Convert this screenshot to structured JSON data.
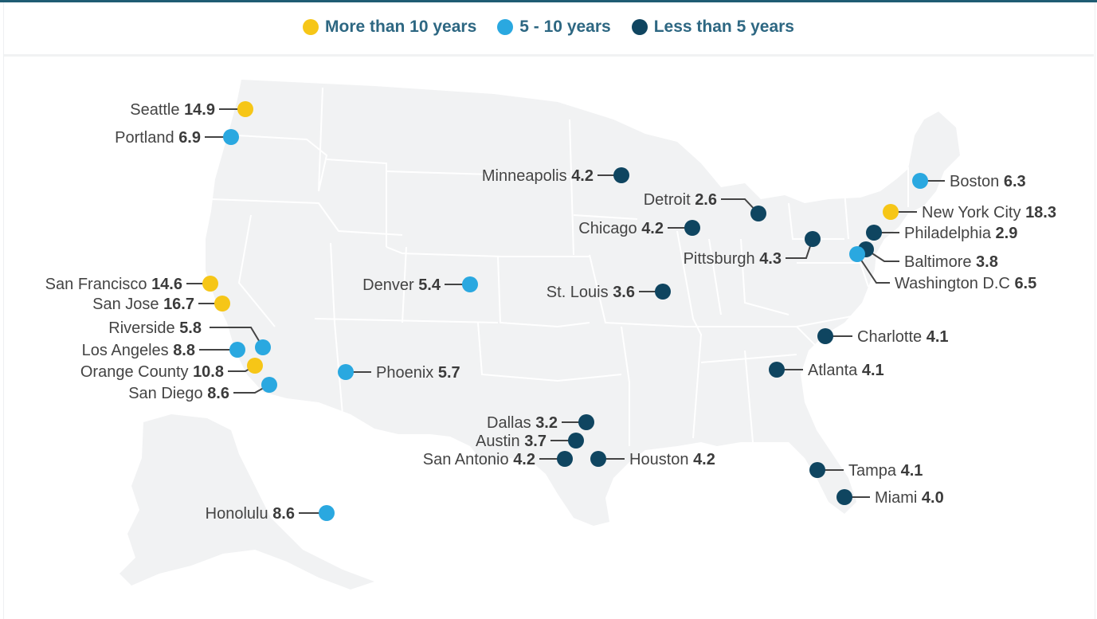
{
  "legend": [
    {
      "label": "More than 10 years",
      "color": "#f6c617"
    },
    {
      "label": "5 - 10 years",
      "color": "#2aa8e0"
    },
    {
      "label": "Less than 5 years",
      "color": "#0f4560"
    }
  ],
  "map_colors": {
    "land": "#f1f2f3",
    "border": "#ffffff",
    "leader": "#444444"
  },
  "cities": [
    {
      "name": "Seattle",
      "value": "14.9",
      "group": 0
    },
    {
      "name": "Portland",
      "value": "6.9",
      "group": 1
    },
    {
      "name": "San Francisco",
      "value": "14.6",
      "group": 0
    },
    {
      "name": "San Jose",
      "value": "16.7",
      "group": 0
    },
    {
      "name": "Riverside",
      "value": "5.8",
      "group": 1
    },
    {
      "name": "Los Angeles",
      "value": "8.8",
      "group": 1
    },
    {
      "name": "Orange County",
      "value": "10.8",
      "group": 0
    },
    {
      "name": "San Diego",
      "value": "8.6",
      "group": 1
    },
    {
      "name": "Honolulu",
      "value": "8.6",
      "group": 1
    },
    {
      "name": "Denver",
      "value": "5.4",
      "group": 1
    },
    {
      "name": "Phoenix",
      "value": "5.7",
      "group": 1
    },
    {
      "name": "Minneapolis",
      "value": "4.2",
      "group": 2
    },
    {
      "name": "Detroit",
      "value": "2.6",
      "group": 2
    },
    {
      "name": "Chicago",
      "value": "4.2",
      "group": 2
    },
    {
      "name": "Pittsburgh",
      "value": "4.3",
      "group": 2
    },
    {
      "name": "St. Louis",
      "value": "3.6",
      "group": 2
    },
    {
      "name": "Dallas",
      "value": "3.2",
      "group": 2
    },
    {
      "name": "Austin",
      "value": "3.7",
      "group": 2
    },
    {
      "name": "San Antonio",
      "value": "4.2",
      "group": 2
    },
    {
      "name": "Houston",
      "value": "4.2",
      "group": 2
    },
    {
      "name": "Boston",
      "value": "6.3",
      "group": 1
    },
    {
      "name": "New York City",
      "value": "18.3",
      "group": 0
    },
    {
      "name": "Philadelphia",
      "value": "2.9",
      "group": 2
    },
    {
      "name": "Baltimore",
      "value": "3.8",
      "group": 2
    },
    {
      "name": "Washington D.C",
      "value": "6.5",
      "group": 1
    },
    {
      "name": "Charlotte",
      "value": "4.1",
      "group": 2
    },
    {
      "name": "Atlanta",
      "value": "4.1",
      "group": 2
    },
    {
      "name": "Tampa",
      "value": "4.1",
      "group": 2
    },
    {
      "name": "Miami",
      "value": "4.0",
      "group": 2
    }
  ]
}
